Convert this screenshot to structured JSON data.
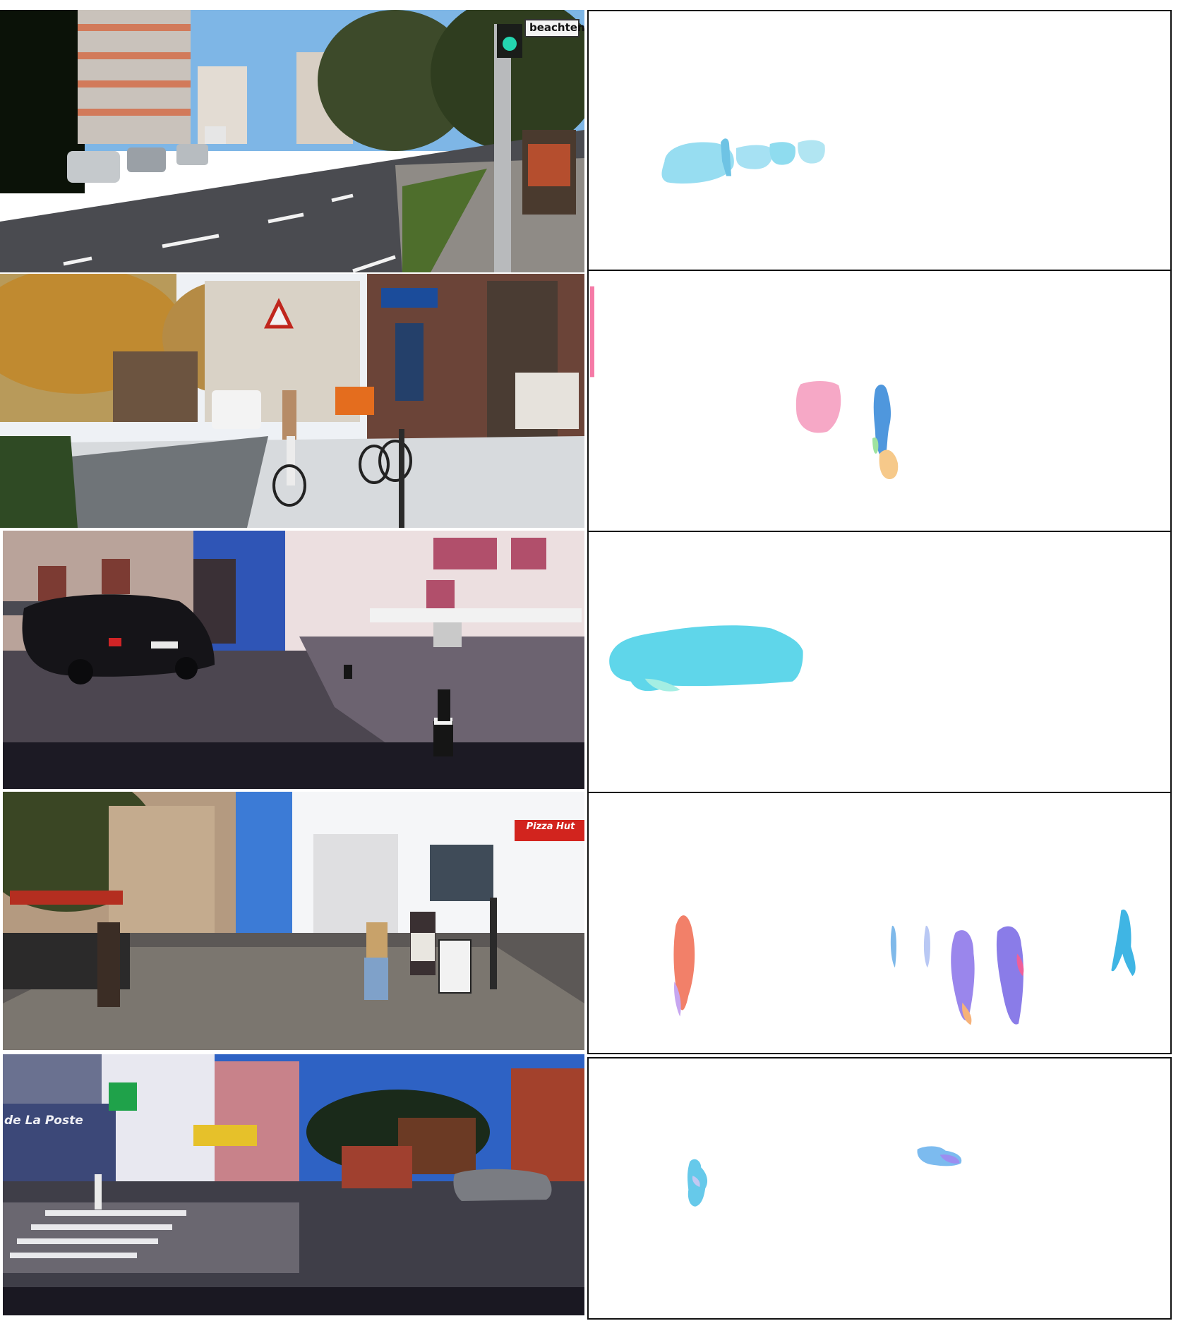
{
  "colors": {
    "flow_background": "#ffffff",
    "frame_border": "#111111",
    "flow_cyan": "#8fdcef",
    "flow_pink": "#f4a6c4",
    "flow_blue": "#5aa6e0",
    "flow_orange_red": "#f28069",
    "flow_violet": "#9a86ec"
  },
  "rows": [
    {
      "scene": "street-with-traffic-light",
      "sign_text": "beachten"
    },
    {
      "scene": "street-with-cyclist",
      "sign_text": ""
    },
    {
      "scene": "old-town-square-with-black-suv",
      "sign_text": ""
    },
    {
      "scene": "pedestrian-zone-with-pizza-hut",
      "sign_text": "Pizza Hut"
    },
    {
      "scene": "intersection-de-la-poste",
      "sign_text": "de La Poste"
    }
  ]
}
